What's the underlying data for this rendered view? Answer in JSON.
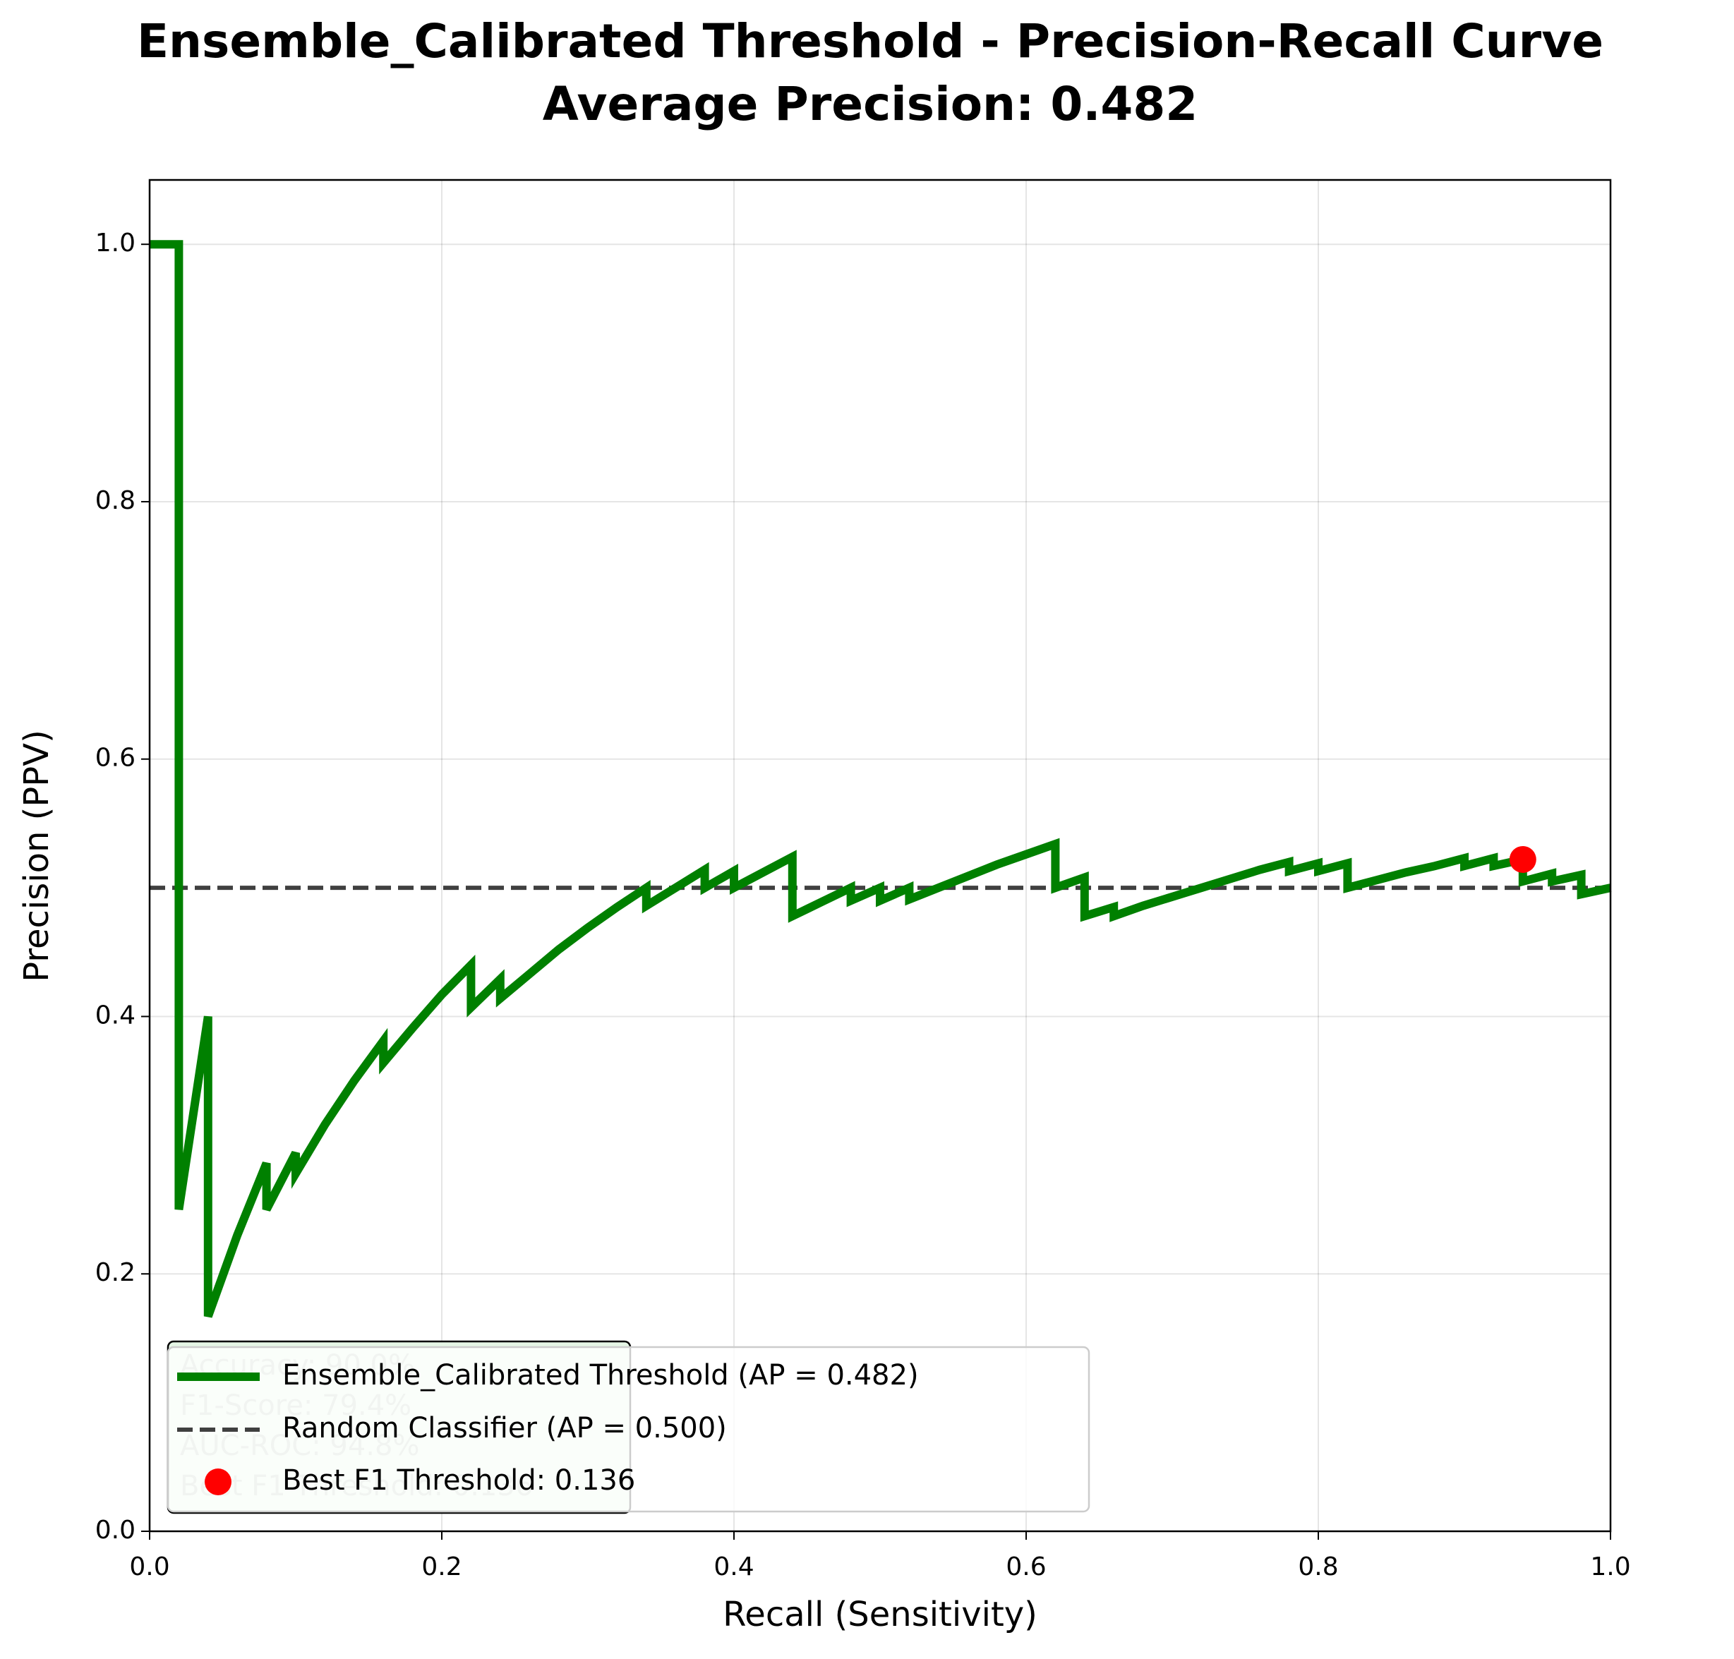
{
  "chart_data": {
    "type": "line",
    "title": "Ensemble_Calibrated Threshold - Precision-Recall Curve",
    "subtitle": "Average Precision: 0.482",
    "x_label": "Recall (Sensitivity)",
    "y_label": "Precision (PPV)",
    "xlim": [
      0,
      1
    ],
    "ylim": [
      0,
      1.05
    ],
    "xticks": [
      {
        "value": 0,
        "label": "0.0"
      },
      {
        "value": 0.2,
        "label": "0.2"
      },
      {
        "value": 0.4,
        "label": "0.4"
      },
      {
        "value": 0.6,
        "label": "0.6"
      },
      {
        "value": 0.8,
        "label": "0.8"
      },
      {
        "value": 1,
        "label": "1.0"
      }
    ],
    "yticks": [
      {
        "value": 0,
        "label": "0.0"
      },
      {
        "value": 0.2,
        "label": "0.2"
      },
      {
        "value": 0.4,
        "label": "0.4"
      },
      {
        "value": 0.6,
        "label": "0.6"
      },
      {
        "value": 0.8,
        "label": "0.8"
      },
      {
        "value": 1,
        "label": "1.0"
      }
    ],
    "grid": true,
    "legend": "lower left",
    "series": [
      {
        "name": "Ensemble_Calibrated Threshold (AP = 0.482)",
        "color": "#008000",
        "x": [
          0,
          0.02,
          0.02,
          0.04,
          0.04,
          0.06,
          0.08,
          0.08,
          0.1,
          0.1,
          0.12,
          0.14,
          0.16,
          0.16,
          0.18,
          0.2,
          0.22,
          0.22,
          0.24,
          0.24,
          0.26,
          0.28,
          0.3,
          0.32,
          0.34,
          0.34,
          0.36,
          0.38,
          0.38,
          0.4,
          0.4,
          0.42,
          0.44,
          0.44,
          0.46,
          0.48,
          0.48,
          0.5,
          0.5,
          0.52,
          0.52,
          0.54,
          0.56,
          0.58,
          0.6,
          0.62,
          0.62,
          0.64,
          0.64,
          0.66,
          0.66,
          0.68,
          0.7,
          0.72,
          0.74,
          0.76,
          0.78,
          0.78,
          0.8,
          0.8,
          0.82,
          0.82,
          0.84,
          0.86,
          0.88,
          0.9,
          0.9,
          0.92,
          0.92,
          0.94,
          0.94,
          0.96,
          0.96,
          0.98,
          0.98,
          1.0
        ],
        "values": [
          1,
          1,
          0.25,
          0.4,
          0.167,
          0.23,
          0.286,
          0.25,
          0.294,
          0.278,
          0.316,
          0.35,
          0.381,
          0.364,
          0.391,
          0.417,
          0.44,
          0.407,
          0.429,
          0.414,
          0.433,
          0.452,
          0.469,
          0.485,
          0.5,
          0.486,
          0.5,
          0.514,
          0.5,
          0.513,
          0.5,
          0.512,
          0.524,
          0.478,
          0.489,
          0.5,
          0.49,
          0.5,
          0.49,
          0.5,
          0.491,
          0.5,
          0.509,
          0.518,
          0.526,
          0.534,
          0.5,
          0.508,
          0.478,
          0.485,
          0.478,
          0.486,
          0.493,
          0.5,
          0.507,
          0.514,
          0.52,
          0.513,
          0.519,
          0.513,
          0.519,
          0.5,
          0.506,
          0.512,
          0.517,
          0.523,
          0.517,
          0.523,
          0.517,
          0.522,
          0.505,
          0.511,
          0.505,
          0.51,
          0.495,
          0.5
        ]
      }
    ],
    "reference_line": {
      "name": "Random Classifier (AP = 0.500)",
      "color": "#404040",
      "value": 0.5
    },
    "best_point": {
      "name": "Best F1 Threshold: 0.136",
      "color": "#ff0000",
      "x": 0.94,
      "y": 0.522
    },
    "annotations": [
      "Accuracy: 90.0%",
      "F1-Score: 79.4%",
      "AUC-ROC: 94.8%",
      "Best F1 Threshold: 0.136"
    ]
  }
}
